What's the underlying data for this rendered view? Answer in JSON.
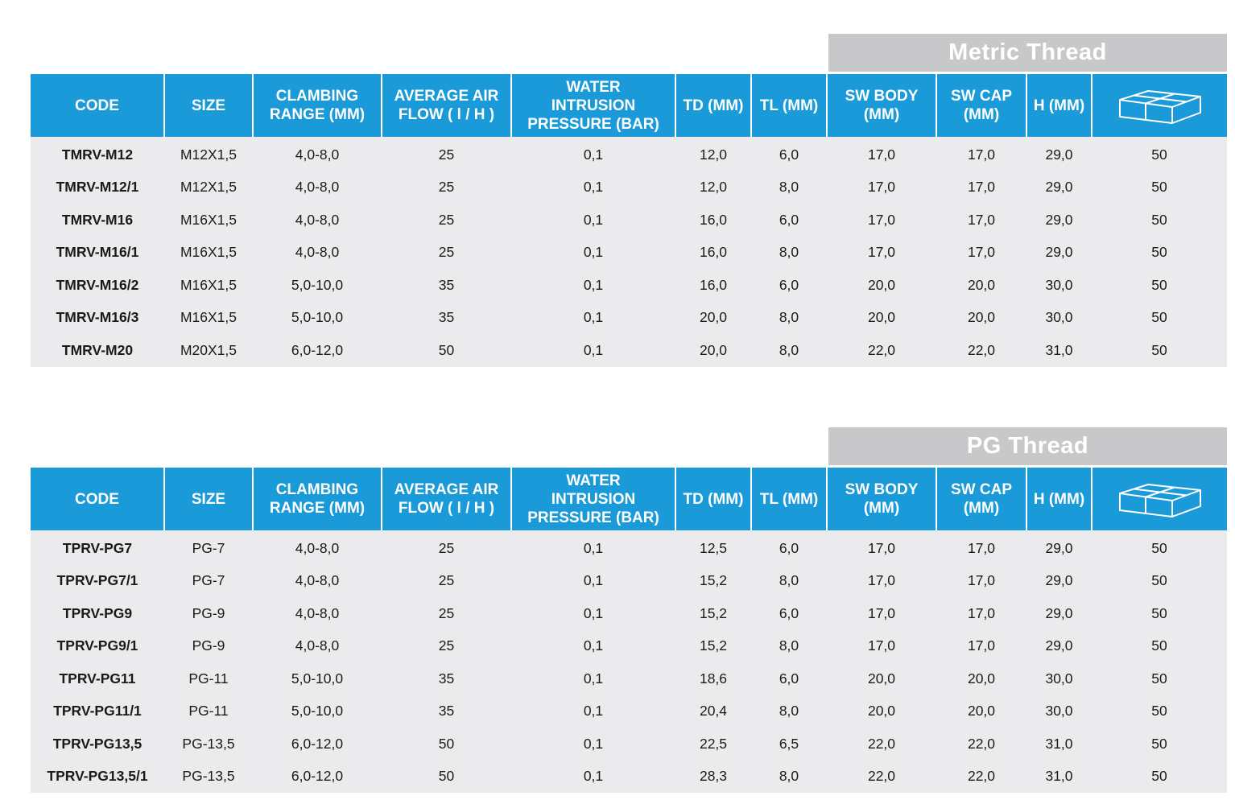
{
  "headers": [
    "CODE",
    "SIZE",
    "CLAMBING\nRANGE (MM)",
    "AVERAGE AIR\nFLOW ( l / H )",
    "WATER\nINTRUSION\nPRESSURE (BAR)",
    "TD (MM)",
    "TL (MM)",
    "SW BODY\n(MM)",
    "SW CAP\n(MM)",
    "H (MM)"
  ],
  "package_icon": "package-box-icon",
  "colors": {
    "header_bg": "#1a9ad9",
    "banner_bg": "#c8c8ca",
    "row_bg": "#ebebed"
  },
  "tables": [
    {
      "title": "Metric Thread",
      "rows": [
        [
          "TMRV-M12",
          "M12X1,5",
          "4,0-8,0",
          "25",
          "0,1",
          "12,0",
          "6,0",
          "17,0",
          "17,0",
          "29,0",
          "50"
        ],
        [
          "TMRV-M12/1",
          "M12X1,5",
          "4,0-8,0",
          "25",
          "0,1",
          "12,0",
          "8,0",
          "17,0",
          "17,0",
          "29,0",
          "50"
        ],
        [
          "TMRV-M16",
          "M16X1,5",
          "4,0-8,0",
          "25",
          "0,1",
          "16,0",
          "6,0",
          "17,0",
          "17,0",
          "29,0",
          "50"
        ],
        [
          "TMRV-M16/1",
          "M16X1,5",
          "4,0-8,0",
          "25",
          "0,1",
          "16,0",
          "8,0",
          "17,0",
          "17,0",
          "29,0",
          "50"
        ],
        [
          "TMRV-M16/2",
          "M16X1,5",
          "5,0-10,0",
          "35",
          "0,1",
          "16,0",
          "6,0",
          "20,0",
          "20,0",
          "30,0",
          "50"
        ],
        [
          "TMRV-M16/3",
          "M16X1,5",
          "5,0-10,0",
          "35",
          "0,1",
          "20,0",
          "8,0",
          "20,0",
          "20,0",
          "30,0",
          "50"
        ],
        [
          "TMRV-M20",
          "M20X1,5",
          "6,0-12,0",
          "50",
          "0,1",
          "20,0",
          "8,0",
          "22,0",
          "22,0",
          "31,0",
          "50"
        ]
      ]
    },
    {
      "title": "PG Thread",
      "rows": [
        [
          "TPRV-PG7",
          "PG-7",
          "4,0-8,0",
          "25",
          "0,1",
          "12,5",
          "6,0",
          "17,0",
          "17,0",
          "29,0",
          "50"
        ],
        [
          "TPRV-PG7/1",
          "PG-7",
          "4,0-8,0",
          "25",
          "0,1",
          "15,2",
          "8,0",
          "17,0",
          "17,0",
          "29,0",
          "50"
        ],
        [
          "TPRV-PG9",
          "PG-9",
          "4,0-8,0",
          "25",
          "0,1",
          "15,2",
          "6,0",
          "17,0",
          "17,0",
          "29,0",
          "50"
        ],
        [
          "TPRV-PG9/1",
          "PG-9",
          "4,0-8,0",
          "25",
          "0,1",
          "15,2",
          "8,0",
          "17,0",
          "17,0",
          "29,0",
          "50"
        ],
        [
          "TPRV-PG11",
          "PG-11",
          "5,0-10,0",
          "35",
          "0,1",
          "18,6",
          "6,0",
          "20,0",
          "20,0",
          "30,0",
          "50"
        ],
        [
          "TPRV-PG11/1",
          "PG-11",
          "5,0-10,0",
          "35",
          "0,1",
          "20,4",
          "8,0",
          "20,0",
          "20,0",
          "30,0",
          "50"
        ],
        [
          "TPRV-PG13,5",
          "PG-13,5",
          "6,0-12,0",
          "50",
          "0,1",
          "22,5",
          "6,5",
          "22,0",
          "22,0",
          "31,0",
          "50"
        ],
        [
          "TPRV-PG13,5/1",
          "PG-13,5",
          "6,0-12,0",
          "50",
          "0,1",
          "28,3",
          "8,0",
          "22,0",
          "22,0",
          "31,0",
          "50"
        ]
      ]
    }
  ]
}
